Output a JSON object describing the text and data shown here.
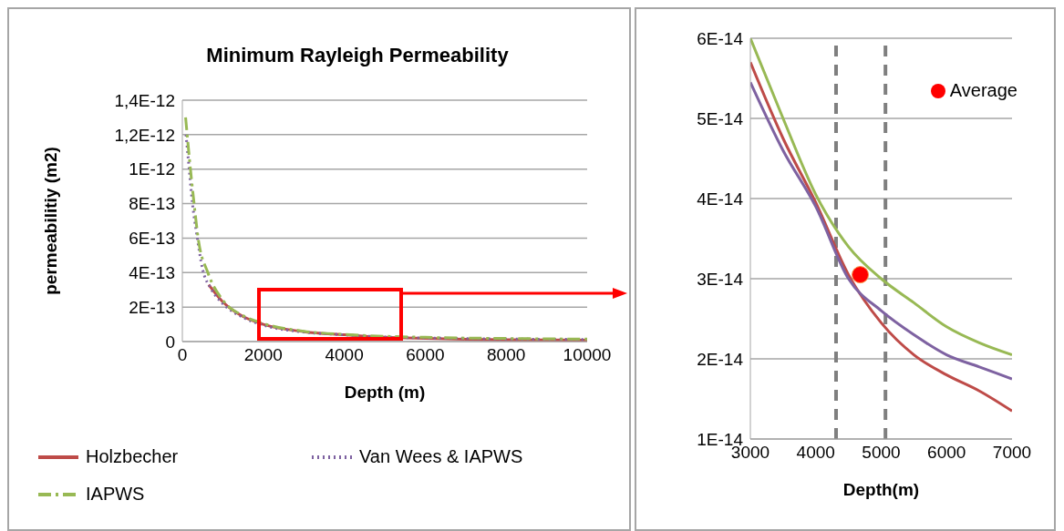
{
  "chart_data": [
    {
      "type": "line",
      "title": "Minimum Rayleigh Permeability",
      "xlabel": "Depth (m)",
      "ylabel": "permeabilitiy (m2)",
      "xlim": [
        0,
        10000
      ],
      "xticks": [
        0,
        2000,
        4000,
        6000,
        8000,
        10000
      ],
      "ylim": [
        0,
        1.4e-12
      ],
      "yticks": [
        {
          "value": 0,
          "label": "0"
        },
        {
          "value": 2e-13,
          "label": "2E-13"
        },
        {
          "value": 4e-13,
          "label": "4E-13"
        },
        {
          "value": 6e-13,
          "label": "6E-13"
        },
        {
          "value": 8e-13,
          "label": "8E-13"
        },
        {
          "value": 1e-12,
          "label": "1E-12"
        },
        {
          "value": 1.2e-12,
          "label": "1,2E-12"
        },
        {
          "value": 1.4e-12,
          "label": "1,4E-12"
        }
      ],
      "grid": "y",
      "legend": "bottom",
      "marker": "none",
      "series": [
        {
          "name": "Holzbecher",
          "color": "#be4b48",
          "line_style": "solid",
          "x": [
            650,
            1000,
            1500,
            2000,
            3000,
            4000,
            5000,
            6000,
            7000,
            8000,
            10000
          ],
          "values": [
            3.3e-13,
            2.3e-13,
            1.45e-13,
            1e-13,
            5.7e-14,
            3.96e-14,
            2.46e-14,
            1.81e-14,
            1.37e-14,
            1.1e-14,
            8e-15
          ]
        },
        {
          "name": "Van Wees & IAPWS",
          "color": "#7e62a1",
          "line_style": "dotted",
          "x": [
            90,
            150,
            250,
            350,
            500,
            700,
            1000,
            1500,
            2000,
            3000,
            4000,
            5000,
            6000,
            7000,
            8000,
            10000
          ],
          "values": [
            1.2e-12,
            1.05e-12,
            8e-13,
            6.3e-13,
            4.2e-13,
            3.1e-13,
            2.2e-13,
            1.4e-13,
            9.5e-14,
            5.5e-14,
            3.9e-14,
            2.6e-14,
            2.1e-14,
            1.75e-14,
            1.5e-14,
            1.2e-14
          ]
        },
        {
          "name": "IAPWS",
          "color": "#98b954",
          "line_style": "dashed",
          "x": [
            80,
            200,
            290,
            390,
            630,
            1000,
            1500,
            2000,
            3000,
            4000,
            5000,
            6000,
            7000,
            8000,
            10000
          ],
          "values": [
            1.3e-12,
            1e-12,
            8e-13,
            6e-13,
            4e-13,
            2.4e-13,
            1.5e-13,
            1.05e-13,
            6e-14,
            4.1e-14,
            3.05e-14,
            2.45e-14,
            2.03e-14,
            1.8e-14,
            1.4e-14
          ]
        }
      ]
    },
    {
      "type": "line",
      "xlabel": "Depth(m)",
      "xlim": [
        3000,
        7000
      ],
      "xticks": [
        3000,
        4000,
        5000,
        6000,
        7000
      ],
      "ylim": [
        1e-14,
        6e-14
      ],
      "yticks": [
        {
          "value": 1e-14,
          "label": "1E-14"
        },
        {
          "value": 2e-14,
          "label": "2E-14"
        },
        {
          "value": 3e-14,
          "label": "3E-14"
        },
        {
          "value": 4e-14,
          "label": "4E-14"
        },
        {
          "value": 5e-14,
          "label": "5E-14"
        },
        {
          "value": 6e-14,
          "label": "6E-14"
        }
      ],
      "grid": "y",
      "legend": "top right",
      "line_style": "solid",
      "ref_lines": [
        {
          "axis": "x",
          "value": 4310,
          "color": "#7f7f7f",
          "line_style": "dashed"
        },
        {
          "axis": "x",
          "value": 5065,
          "color": "#7f7f7f",
          "line_style": "dashed"
        }
      ],
      "series": [
        {
          "color": "#be4b48",
          "x": [
            3000,
            3500,
            4000,
            4500,
            5000,
            5500,
            6000,
            6500,
            7000
          ],
          "values": [
            5.7e-14,
            4.75e-14,
            3.95e-14,
            3.05e-14,
            2.45e-14,
            2.05e-14,
            1.8e-14,
            1.6e-14,
            1.35e-14
          ]
        },
        {
          "color": "#7e62a1",
          "x": [
            3000,
            3500,
            4000,
            4500,
            5000,
            5500,
            6000,
            6500,
            7000
          ],
          "values": [
            5.45e-14,
            4.6e-14,
            3.9e-14,
            3e-14,
            2.6e-14,
            2.3e-14,
            2.05e-14,
            1.9e-14,
            1.75e-14
          ]
        },
        {
          "color": "#98b954",
          "x": [
            3000,
            3500,
            4000,
            4500,
            5000,
            5500,
            6000,
            6500,
            7000
          ],
          "values": [
            6e-14,
            5e-14,
            4.05e-14,
            3.4e-14,
            3e-14,
            2.7e-14,
            2.4e-14,
            2.2e-14,
            2.05e-14
          ]
        },
        {
          "type": "scatter",
          "name": "Average",
          "color": "#ff0000",
          "marker": "circle",
          "x": [
            4680
          ],
          "values": [
            3.05e-14
          ]
        }
      ]
    }
  ]
}
